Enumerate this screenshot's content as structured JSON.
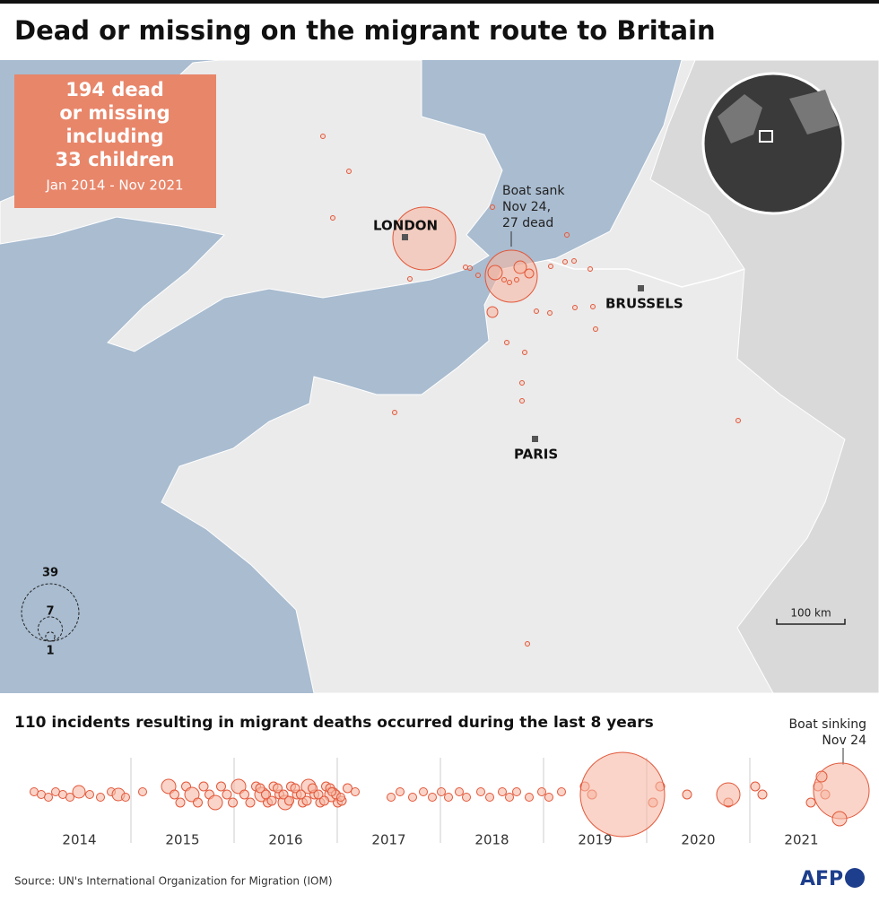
{
  "header": {
    "title": "Dead or missing on the migrant route to Britain"
  },
  "info_box": {
    "lines": [
      "194 dead",
      "or missing",
      "including",
      "33 children"
    ],
    "period": "Jan 2014 - Nov 2021"
  },
  "map": {
    "labels": {
      "london": "LONDON",
      "brussels": "BRUSSELS",
      "paris": "PARIS"
    },
    "annotation": [
      "Boat sank",
      "Nov 24,",
      "27 dead"
    ],
    "scale": "100 km",
    "legend": {
      "sizes": [
        39,
        7,
        1
      ]
    }
  },
  "timeline": {
    "subtitle": "110 incidents resulting in migrant deaths occurred during the last 8 years",
    "years": [
      "2014",
      "2015",
      "2016",
      "2017",
      "2018",
      "2019",
      "2020",
      "2021"
    ],
    "annotation": [
      "Boat sinking",
      "Nov 24"
    ]
  },
  "footer": {
    "source": "Source: UN's International Organization for Migration (IOM)",
    "logo": "AFP"
  }
}
